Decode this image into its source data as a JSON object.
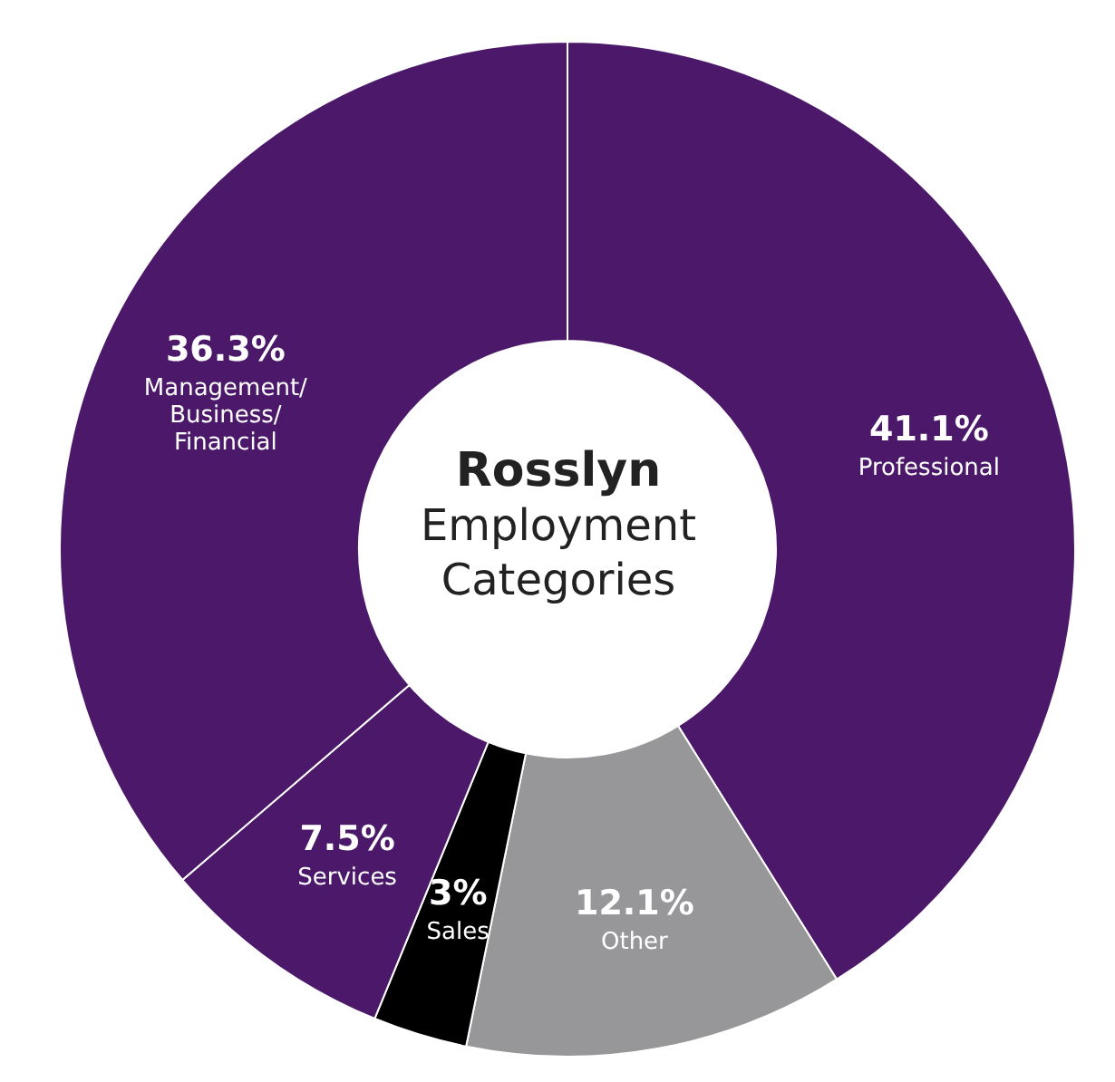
{
  "chart_data": {
    "type": "donut",
    "title": "Rosslyn",
    "subtitle": "Employment Categories",
    "categories": [
      "Professional",
      "Other",
      "Sales",
      "Services",
      "Management/ Business/ Financial"
    ],
    "values": [
      41.1,
      12.1,
      3,
      7.5,
      36.3
    ],
    "value_labels": [
      "41.1%",
      "12.1%",
      "3%",
      "7.5%",
      "36.3%"
    ],
    "colors": [
      "#4b186a",
      "#97979a",
      "#000000",
      "#4b186a",
      "#4b186a"
    ],
    "legend": false
  }
}
